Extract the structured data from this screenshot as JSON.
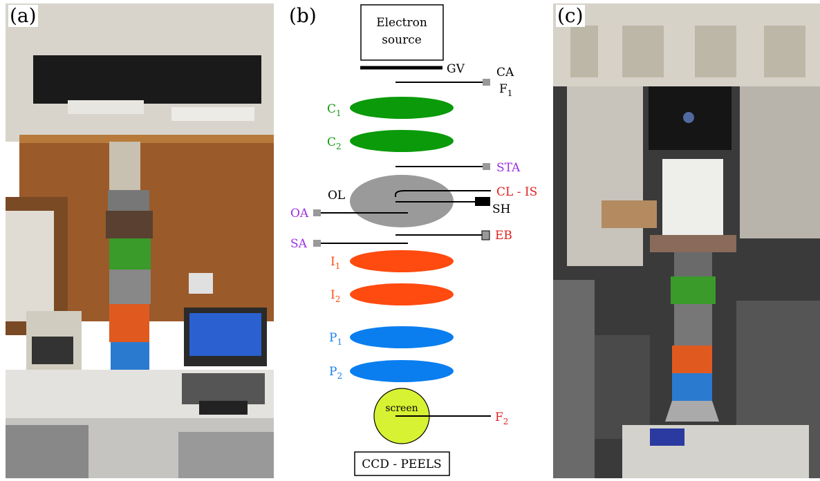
{
  "panels": {
    "a": {
      "label": "(a)"
    },
    "b": {
      "label": "(b)"
    },
    "c": {
      "label": "(c)"
    }
  },
  "diagram": {
    "source_box": [
      "Electron",
      "source"
    ],
    "gv": "GV",
    "ca": "CA",
    "f1_base": "F",
    "f1_sub": "1",
    "c1_base": "C",
    "c1_sub": "1",
    "c2_base": "C",
    "c2_sub": "2",
    "sta": "STA",
    "ol": "OL",
    "cl_is": "CL - IS",
    "sh": "SH",
    "oa": "OA",
    "eb": "EB",
    "sa": "SA",
    "i1_base": "I",
    "i1_sub": "1",
    "i2_base": "I",
    "i2_sub": "2",
    "p1_base": "P",
    "p1_sub": "1",
    "p2_base": "P",
    "p2_sub": "2",
    "screen": "screen",
    "f2_base": "F",
    "f2_sub": "2",
    "ccd": "CCD - PEELS"
  },
  "colors": {
    "condenser": "#0a9a0a",
    "intermediate": "#ff4a10",
    "projector": "#0a7eef",
    "objective": "#9a9a9a",
    "screen": "#d7f232",
    "aperture_label": "#9b30e0",
    "red_label": "#e02020",
    "green_label": "#129a12",
    "orange_label": "#ff4a10",
    "blue_label": "#1a7eef"
  }
}
